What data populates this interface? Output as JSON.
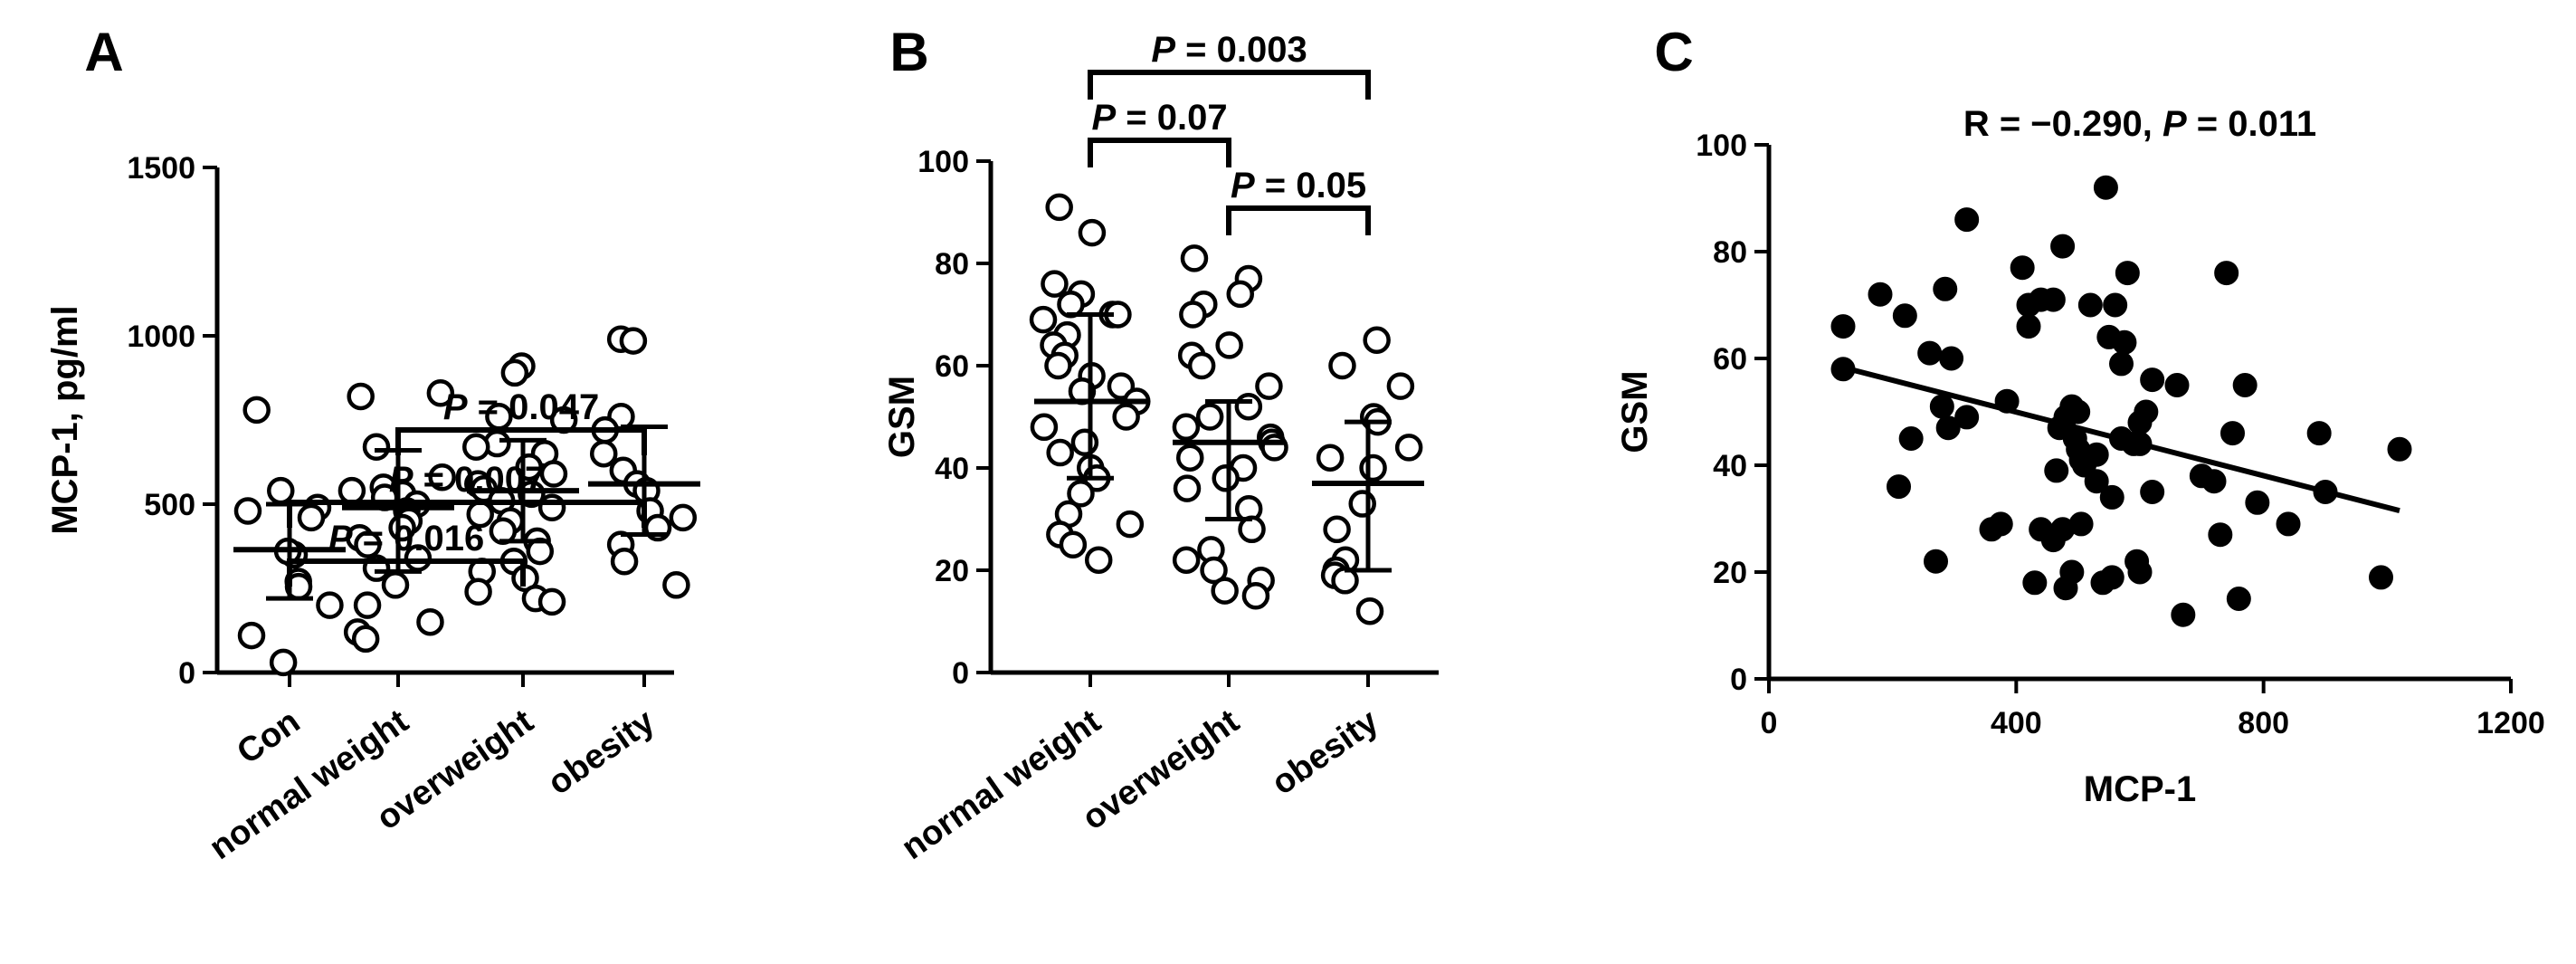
{
  "chart_data": [
    {
      "panel": "A",
      "type": "scatter",
      "ylabel": "MCP-1, pg/ml",
      "ylim": [
        0,
        1500
      ],
      "yticks": [
        0,
        500,
        1000,
        1500
      ],
      "categories": [
        "Con",
        "normal weight",
        "overweight",
        "obesity"
      ],
      "groups": [
        {
          "values": [
            780,
            540,
            480,
            490,
            350,
            460,
            360,
            270,
            255,
            200,
            110,
            30
          ],
          "mean": 365,
          "sd_low": 220,
          "sd_high": 500
        },
        {
          "values": [
            830,
            820,
            670,
            580,
            540,
            530,
            550,
            520,
            500,
            480,
            450,
            430,
            400,
            380,
            340,
            310,
            260,
            200,
            150,
            120,
            100
          ],
          "mean": 490,
          "sd_low": 300,
          "sd_high": 660
        },
        {
          "values": [
            910,
            890,
            760,
            750,
            680,
            670,
            650,
            610,
            590,
            560,
            545,
            530,
            510,
            490,
            470,
            450,
            420,
            390,
            360,
            330,
            300,
            280,
            240,
            220,
            210
          ],
          "mean": 540,
          "sd_low": 390,
          "sd_high": 690
        },
        {
          "values": [
            990,
            985,
            760,
            720,
            650,
            600,
            560,
            540,
            480,
            460,
            430,
            380,
            330,
            260
          ],
          "mean": 560,
          "sd_low": 410,
          "sd_high": 730
        }
      ],
      "comparisons": [
        {
          "from": 0,
          "to": 2,
          "p_label": "P",
          "p_value": "= 0.016"
        },
        {
          "from": 0,
          "to": 3,
          "p_label": "P",
          "p_value": "= 0.007"
        },
        {
          "from": 1,
          "to": 3,
          "p_label": "P",
          "p_value": "= 0.047"
        }
      ]
    },
    {
      "panel": "B",
      "type": "scatter",
      "ylabel": "GSM",
      "ylim": [
        0,
        100
      ],
      "yticks": [
        0,
        20,
        40,
        60,
        80,
        100
      ],
      "categories": [
        "normal weight",
        "overweight",
        "obesity"
      ],
      "groups": [
        {
          "values": [
            91,
            86,
            76,
            74,
            72,
            70,
            70,
            69,
            66,
            64,
            62,
            60,
            58,
            56,
            55,
            53,
            50,
            48,
            45,
            43,
            40,
            38,
            35,
            31,
            29,
            27,
            25,
            22
          ],
          "mean": 53,
          "sd_low": 38,
          "sd_high": 70
        },
        {
          "values": [
            81,
            77,
            74,
            72,
            70,
            64,
            62,
            60,
            56,
            52,
            50,
            48,
            46,
            45,
            44,
            42,
            40,
            38,
            36,
            32,
            28,
            24,
            22,
            20,
            18,
            16,
            15
          ],
          "mean": 45,
          "sd_low": 30,
          "sd_high": 53
        },
        {
          "values": [
            65,
            60,
            56,
            50,
            49,
            44,
            42,
            40,
            33,
            28,
            22,
            20,
            19,
            18,
            12
          ],
          "mean": 37,
          "sd_low": 20,
          "sd_high": 49
        }
      ],
      "comparisons": [
        {
          "from": 0,
          "to": 1,
          "p_label": "P",
          "p_value": "= 0.07"
        },
        {
          "from": 0,
          "to": 2,
          "p_label": "P",
          "p_value": "= 0.003"
        },
        {
          "from": 1,
          "to": 2,
          "p_label": "P",
          "p_value": "= 0.05"
        }
      ]
    },
    {
      "panel": "C",
      "type": "scatter",
      "title_prefix": "R = −0.290, ",
      "title_p": "P",
      "title_suffix": " = 0.011",
      "xlabel": "MCP-1",
      "ylabel": "GSM",
      "xlim": [
        0,
        1200
      ],
      "ylim": [
        0,
        100
      ],
      "xticks": [
        0,
        400,
        800,
        1200
      ],
      "yticks": [
        0,
        20,
        40,
        60,
        80,
        100
      ],
      "points": [
        [
          120,
          66
        ],
        [
          120,
          58
        ],
        [
          180,
          72
        ],
        [
          220,
          68
        ],
        [
          210,
          36
        ],
        [
          230,
          45
        ],
        [
          260,
          61
        ],
        [
          285,
          73
        ],
        [
          295,
          60
        ],
        [
          280,
          51
        ],
        [
          290,
          47
        ],
        [
          320,
          86
        ],
        [
          320,
          49
        ],
        [
          270,
          22
        ],
        [
          360,
          28
        ],
        [
          375,
          29
        ],
        [
          385,
          52
        ],
        [
          410,
          77
        ],
        [
          420,
          70
        ],
        [
          420,
          66
        ],
        [
          440,
          71
        ],
        [
          460,
          71
        ],
        [
          475,
          81
        ],
        [
          490,
          51
        ],
        [
          480,
          49
        ],
        [
          470,
          47
        ],
        [
          495,
          45
        ],
        [
          500,
          43
        ],
        [
          505,
          41
        ],
        [
          510,
          40
        ],
        [
          520,
          70
        ],
        [
          530,
          42
        ],
        [
          545,
          92
        ],
        [
          550,
          64
        ],
        [
          560,
          70
        ],
        [
          570,
          59
        ],
        [
          575,
          63
        ],
        [
          580,
          76
        ],
        [
          590,
          44
        ],
        [
          610,
          50
        ],
        [
          600,
          44
        ],
        [
          620,
          56
        ],
        [
          620,
          35
        ],
        [
          660,
          55
        ],
        [
          700,
          38
        ],
        [
          720,
          37
        ],
        [
          740,
          76
        ],
        [
          750,
          46
        ],
        [
          770,
          55
        ],
        [
          790,
          33
        ],
        [
          730,
          27
        ],
        [
          670,
          12
        ],
        [
          760,
          15
        ],
        [
          840,
          29
        ],
        [
          890,
          46
        ],
        [
          900,
          35
        ],
        [
          990,
          19
        ],
        [
          1020,
          43
        ],
        [
          480,
          17
        ],
        [
          490,
          20
        ],
        [
          430,
          18
        ],
        [
          460,
          26
        ],
        [
          440,
          28
        ],
        [
          475,
          28
        ],
        [
          505,
          29
        ],
        [
          540,
          18
        ],
        [
          555,
          19
        ],
        [
          600,
          20
        ],
        [
          595,
          22
        ],
        [
          555,
          34
        ],
        [
          530,
          37
        ],
        [
          465,
          39
        ],
        [
          500,
          50
        ],
        [
          570,
          45
        ],
        [
          600,
          48
        ]
      ],
      "regression": {
        "x": [
          120,
          1020
        ],
        "y": [
          58.3,
          31.5
        ]
      }
    }
  ]
}
